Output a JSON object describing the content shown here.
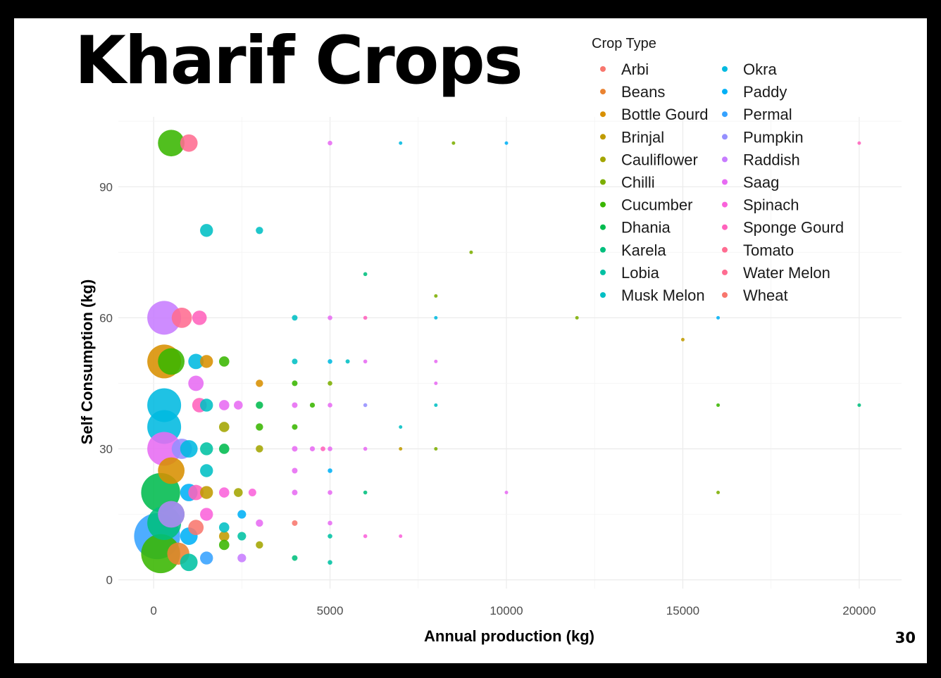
{
  "slide": {
    "title": "Kharif Crops",
    "page_number": "30"
  },
  "chart_data": {
    "type": "scatter",
    "subtype": "bubble",
    "title": "",
    "xlabel": "Annual production (kg)",
    "ylabel": "Self Consumption (kg)",
    "xlim": [
      -1000,
      21200
    ],
    "ylim": [
      -2,
      106
    ],
    "x_ticks": [
      0,
      5000,
      10000,
      15000,
      20000
    ],
    "y_ticks": [
      0,
      30,
      60,
      90
    ],
    "x_tick_labels": [
      "0",
      "5000",
      "10000",
      "15000",
      "20000"
    ],
    "y_tick_labels": [
      "0",
      "30",
      "60",
      "90"
    ],
    "grid": true,
    "legend": {
      "title": "Crop Type",
      "position": "top-right",
      "columns": 2
    },
    "size_encoding": "larger for lower annual production",
    "series": [
      {
        "name": "Arbi",
        "color": "#F8766D",
        "points": [
          [
            1200,
            12
          ],
          [
            4000,
            13
          ]
        ]
      },
      {
        "name": "Beans",
        "color": "#EA8331",
        "points": [
          [
            700,
            6
          ],
          [
            500,
            15
          ]
        ]
      },
      {
        "name": "Bottle Gourd",
        "color": "#D89000",
        "points": [
          [
            300,
            50
          ],
          [
            1500,
            50
          ],
          [
            3000,
            45
          ],
          [
            500,
            25
          ]
        ]
      },
      {
        "name": "Brinjal",
        "color": "#C09B00",
        "points": [
          [
            15000,
            55
          ],
          [
            7000,
            30
          ],
          [
            2000,
            10
          ],
          [
            1500,
            20
          ]
        ]
      },
      {
        "name": "Cauliflower",
        "color": "#A3A500",
        "points": [
          [
            2000,
            35
          ],
          [
            3000,
            30
          ],
          [
            2400,
            20
          ],
          [
            3000,
            8
          ]
        ]
      },
      {
        "name": "Chilli",
        "color": "#7CAE00",
        "points": [
          [
            8500,
            100
          ],
          [
            12000,
            60
          ],
          [
            9000,
            75
          ],
          [
            8000,
            65
          ],
          [
            5000,
            45
          ],
          [
            8000,
            30
          ],
          [
            16000,
            20
          ]
        ]
      },
      {
        "name": "Cucumber",
        "color": "#39B600",
        "points": [
          [
            500,
            100
          ],
          [
            500,
            50
          ],
          [
            2000,
            50
          ],
          [
            4000,
            45
          ],
          [
            3000,
            35
          ],
          [
            4000,
            35
          ],
          [
            4500,
            40
          ],
          [
            16000,
            40
          ],
          [
            200,
            6
          ],
          [
            2000,
            8
          ]
        ]
      },
      {
        "name": "Dhania",
        "color": "#00BB4E",
        "points": [
          [
            2000,
            30
          ],
          [
            3000,
            40
          ],
          [
            200,
            20
          ]
        ]
      },
      {
        "name": "Karela",
        "color": "#00BF7D",
        "points": [
          [
            6000,
            70
          ],
          [
            20000,
            40
          ],
          [
            6000,
            20
          ],
          [
            4000,
            5
          ],
          [
            300,
            13
          ]
        ]
      },
      {
        "name": "Lobia",
        "color": "#00C1A3",
        "points": [
          [
            5000,
            10
          ],
          [
            2500,
            10
          ],
          [
            1000,
            4
          ],
          [
            5000,
            4
          ],
          [
            1500,
            30
          ]
        ]
      },
      {
        "name": "Musk Melon",
        "color": "#00BFC4",
        "points": [
          [
            1500,
            80
          ],
          [
            3000,
            80
          ],
          [
            4000,
            60
          ],
          [
            8000,
            40
          ],
          [
            7000,
            35
          ],
          [
            4000,
            50
          ],
          [
            5500,
            50
          ],
          [
            1500,
            40
          ],
          [
            1500,
            25
          ],
          [
            2000,
            12
          ]
        ]
      },
      {
        "name": "Okra",
        "color": "#00BAE0",
        "points": [
          [
            7000,
            100
          ],
          [
            8000,
            60
          ],
          [
            5000,
            50
          ],
          [
            300,
            40
          ],
          [
            1200,
            50
          ],
          [
            300,
            35
          ],
          [
            1000,
            30
          ]
        ]
      },
      {
        "name": "Paddy",
        "color": "#00B0F6",
        "points": [
          [
            10000,
            100
          ],
          [
            16000,
            60
          ],
          [
            5000,
            25
          ],
          [
            1000,
            20
          ],
          [
            2500,
            15
          ],
          [
            1000,
            10
          ]
        ]
      },
      {
        "name": "Permal",
        "color": "#35A2FF",
        "points": [
          [
            100,
            10
          ],
          [
            1500,
            5
          ]
        ]
      },
      {
        "name": "Pumpkin",
        "color": "#9590FF",
        "points": [
          [
            6000,
            40
          ],
          [
            800,
            30
          ],
          [
            500,
            15
          ]
        ]
      },
      {
        "name": "Raddish",
        "color": "#C77CFF",
        "points": [
          [
            2500,
            5
          ],
          [
            300,
            60
          ]
        ]
      },
      {
        "name": "Saag",
        "color": "#E76BF3",
        "points": [
          [
            5000,
            100
          ],
          [
            5000,
            60
          ],
          [
            6000,
            50
          ],
          [
            8000,
            50
          ],
          [
            8000,
            45
          ],
          [
            4000,
            40
          ],
          [
            5000,
            40
          ],
          [
            2400,
            40
          ],
          [
            4000,
            30
          ],
          [
            4500,
            30
          ],
          [
            5000,
            30
          ],
          [
            6000,
            30
          ],
          [
            4000,
            25
          ],
          [
            4000,
            20
          ],
          [
            5000,
            20
          ],
          [
            10000,
            20
          ],
          [
            3000,
            13
          ],
          [
            5000,
            13
          ],
          [
            300,
            30
          ],
          [
            1200,
            45
          ],
          [
            2000,
            40
          ]
        ]
      },
      {
        "name": "Spinach",
        "color": "#FA62DB",
        "points": [
          [
            6000,
            10
          ],
          [
            7000,
            10
          ],
          [
            1500,
            15
          ],
          [
            2000,
            20
          ],
          [
            2800,
            20
          ]
        ]
      },
      {
        "name": "Sponge Gourd",
        "color": "#FF62BC",
        "points": [
          [
            20000,
            100
          ],
          [
            6000,
            60
          ],
          [
            1300,
            60
          ],
          [
            4800,
            30
          ],
          [
            1300,
            40
          ],
          [
            1200,
            20
          ]
        ]
      },
      {
        "name": "Tomato",
        "color": "#FF6C91",
        "points": [
          [
            1000,
            100
          ],
          [
            800,
            60
          ]
        ]
      },
      {
        "name": "Water Melon",
        "color": "#FF6C91",
        "points": []
      },
      {
        "name": "Wheat",
        "color": "#F8766D",
        "points": []
      }
    ]
  }
}
